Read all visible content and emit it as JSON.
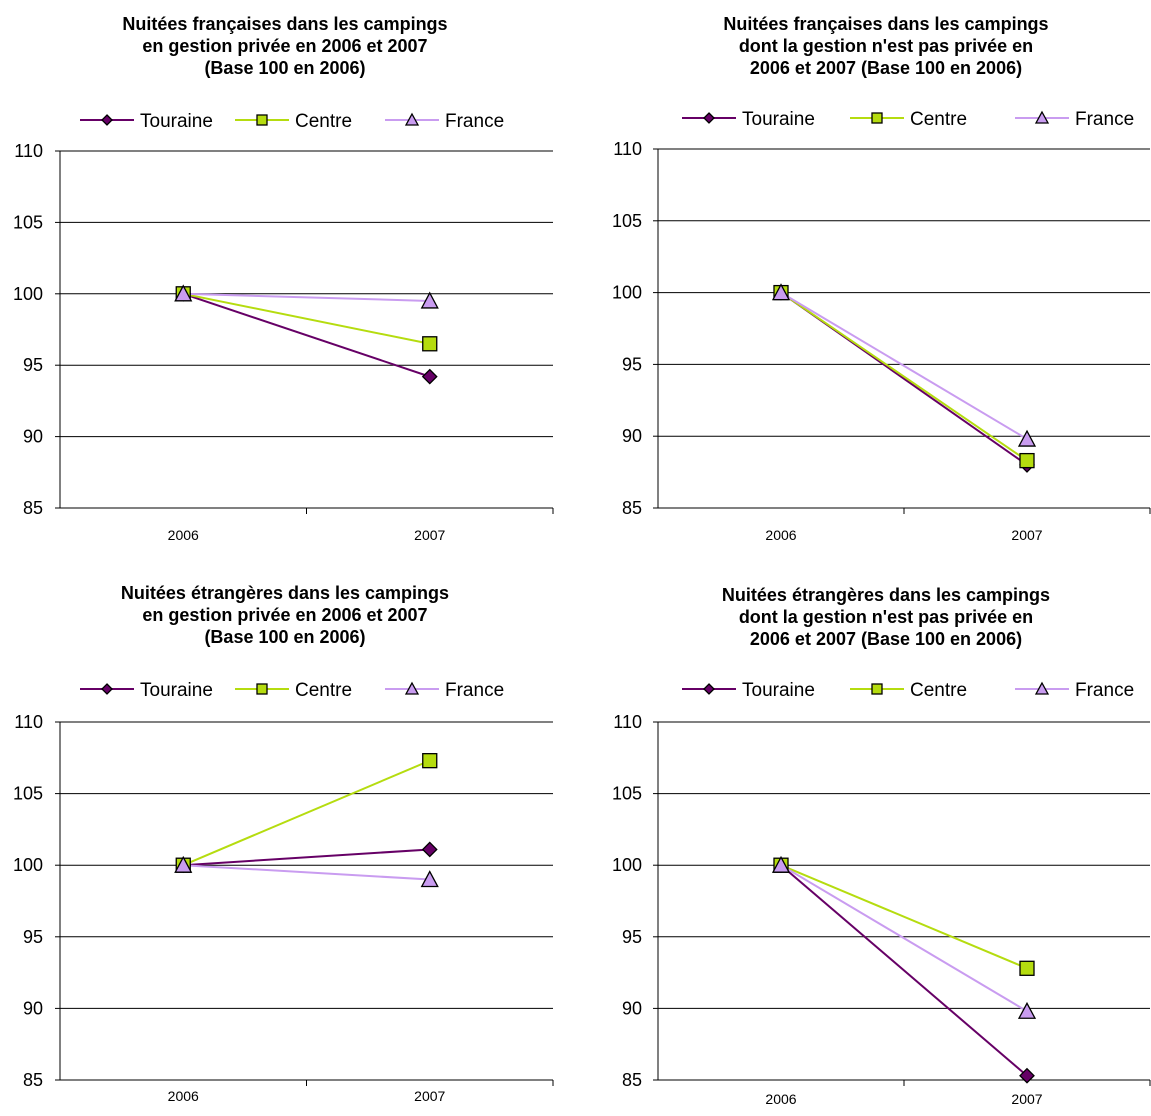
{
  "colors": {
    "touraine": "#660066",
    "centre": "#b5dc0f",
    "france": "#c99cf0",
    "marker_stroke": "#000000",
    "gridline": "#000000"
  },
  "chart_data": [
    {
      "type": "line",
      "title": "Nuitées françaises dans les campings en gestion privée en 2006 et 2007 (Base 100 en 2006)",
      "title_lines": [
        "Nuitées françaises dans les campings",
        "en gestion privée en 2006 et 2007",
        "(Base 100 en 2006)"
      ],
      "categories": [
        "2006",
        "2007"
      ],
      "ylim": [
        85,
        110
      ],
      "yticks": [
        "85",
        "90",
        "95",
        "100",
        "105",
        "110"
      ],
      "grid": true,
      "legend": "top",
      "series": [
        {
          "name": "Touraine",
          "marker": "diamond",
          "values": [
            100,
            94.2
          ]
        },
        {
          "name": "Centre",
          "marker": "square",
          "values": [
            100,
            96.5
          ]
        },
        {
          "name": "France",
          "marker": "triangle",
          "values": [
            100,
            99.5
          ]
        }
      ]
    },
    {
      "type": "line",
      "title": "Nuitées françaises dans les campings dont la gestion n'est pas privée en 2006 et 2007 (Base 100 en 2006)",
      "title_lines": [
        "Nuitées françaises dans les campings",
        "dont la gestion n'est pas privée en",
        "2006 et 2007 (Base 100 en 2006)"
      ],
      "categories": [
        "2006",
        "2007"
      ],
      "ylim": [
        85,
        110
      ],
      "yticks": [
        "85",
        "90",
        "95",
        "100",
        "105",
        "110"
      ],
      "grid": true,
      "legend": "top",
      "series": [
        {
          "name": "Touraine",
          "marker": "diamond",
          "values": [
            100,
            88.0
          ]
        },
        {
          "name": "Centre",
          "marker": "square",
          "values": [
            100,
            88.3
          ]
        },
        {
          "name": "France",
          "marker": "triangle",
          "values": [
            100,
            89.8
          ]
        }
      ]
    },
    {
      "type": "line",
      "title": "Nuitées étrangères dans les campings en gestion privée en 2006 et 2007 (Base 100 en 2006)",
      "title_lines": [
        "Nuitées étrangères dans les campings",
        "en gestion privée en 2006 et 2007",
        "(Base 100 en 2006)"
      ],
      "categories": [
        "2006",
        "2007"
      ],
      "ylim": [
        85,
        110
      ],
      "yticks": [
        "85",
        "90",
        "95",
        "100",
        "105",
        "110"
      ],
      "grid": true,
      "legend": "top",
      "series": [
        {
          "name": "Touraine",
          "marker": "diamond",
          "values": [
            100,
            101.1
          ]
        },
        {
          "name": "Centre",
          "marker": "square",
          "values": [
            100,
            107.3
          ]
        },
        {
          "name": "France",
          "marker": "triangle",
          "values": [
            100,
            99.0
          ]
        }
      ]
    },
    {
      "type": "line",
      "title": "Nuitées étrangères dans les campings dont la gestion n'est pas privée en 2006 et 2007 (Base 100 en 2006)",
      "title_lines": [
        "Nuitées étrangères dans les campings",
        "dont la gestion n'est pas privée en",
        "2006 et 2007 (Base 100 en 2006)"
      ],
      "categories": [
        "2006",
        "2007"
      ],
      "ylim": [
        85,
        110
      ],
      "yticks": [
        "85",
        "90",
        "95",
        "100",
        "105",
        "110"
      ],
      "grid": true,
      "legend": "top",
      "series": [
        {
          "name": "Touraine",
          "marker": "diamond",
          "values": [
            100,
            85.3
          ]
        },
        {
          "name": "Centre",
          "marker": "square",
          "values": [
            100,
            92.8
          ]
        },
        {
          "name": "France",
          "marker": "triangle",
          "values": [
            100,
            89.8
          ]
        }
      ]
    }
  ]
}
